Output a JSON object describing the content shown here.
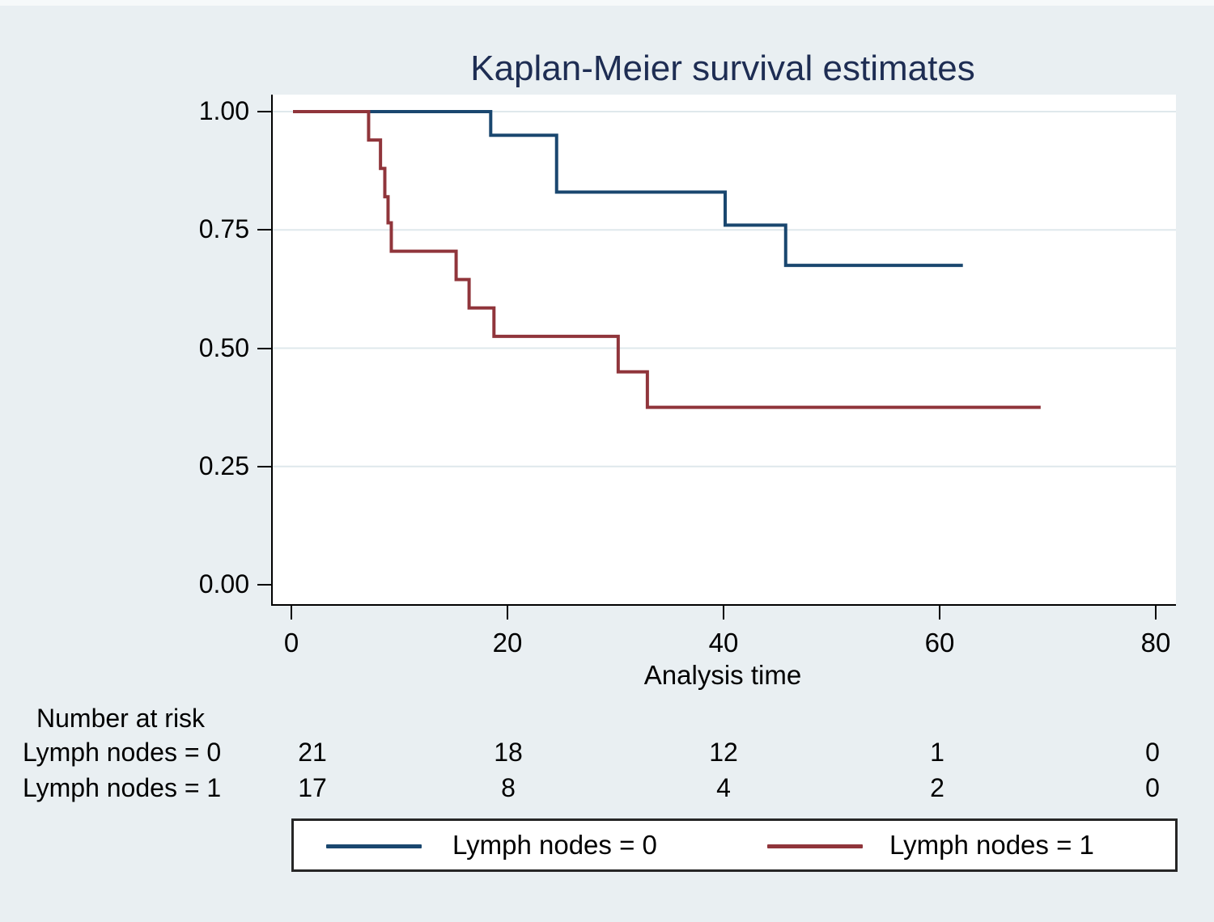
{
  "title": "Kaplan-Meier survival estimates",
  "colors": {
    "background": "#e9eff2",
    "plot_background": "#ffffff",
    "gridline": "#dfe8ec",
    "axis": "#000000",
    "title_text": "#1e2d53",
    "group0_navy": "#1a476f",
    "group1_maroon": "#90353b"
  },
  "chart_data": {
    "type": "line",
    "variant": "kaplan-meier step survival curves",
    "title": "Kaplan-Meier survival estimates",
    "xlabel": "Analysis time",
    "ylabel": "",
    "xlim": [
      0,
      80
    ],
    "ylim": [
      0,
      1
    ],
    "grid": "horizontal gridlines at 1.00, 0.75, 0.50, 0.25",
    "legend_position": "bottom",
    "series": [
      {
        "name": "Lymph nodes = 0",
        "color": "#1a476f",
        "points": [
          [
            0,
            1.0
          ],
          [
            18.3,
            0.95
          ],
          [
            24.4,
            0.83
          ],
          [
            40,
            0.76
          ],
          [
            45.6,
            0.675
          ]
        ],
        "end_time": 62
      },
      {
        "name": "Lymph nodes = 1",
        "color": "#90353b",
        "points": [
          [
            0,
            1.0
          ],
          [
            7,
            0.94
          ],
          [
            8.1,
            0.88
          ],
          [
            8.5,
            0.82
          ],
          [
            8.8,
            0.765
          ],
          [
            9.1,
            0.705
          ],
          [
            15.1,
            0.645
          ],
          [
            16.3,
            0.585
          ],
          [
            18.6,
            0.525
          ],
          [
            30.1,
            0.45
          ],
          [
            32.8,
            0.375
          ]
        ],
        "end_time": 69.2
      }
    ]
  },
  "x_axis": {
    "label": "Analysis time",
    "ticks": [
      {
        "v": 0,
        "label": "0"
      },
      {
        "v": 20,
        "label": "20"
      },
      {
        "v": 40,
        "label": "40"
      },
      {
        "v": 60,
        "label": "60"
      },
      {
        "v": 80,
        "label": "80"
      }
    ]
  },
  "y_axis": {
    "ticks": [
      {
        "v": 1.0,
        "label": "1.00"
      },
      {
        "v": 0.75,
        "label": "0.75"
      },
      {
        "v": 0.5,
        "label": "0.50"
      },
      {
        "v": 0.25,
        "label": "0.25"
      },
      {
        "v": 0.0,
        "label": "0.00"
      }
    ],
    "gridlines": [
      1.0,
      0.75,
      0.5,
      0.25
    ]
  },
  "risk_table": {
    "header": "Number at risk",
    "time_points": [
      0,
      20,
      40,
      60,
      80
    ],
    "rows": [
      {
        "label": "Lymph nodes = 0",
        "counts": [
          "21",
          "18",
          "12",
          "1",
          "0"
        ]
      },
      {
        "label": "Lymph nodes = 1",
        "counts": [
          "17",
          "8",
          "4",
          "2",
          "0"
        ]
      }
    ]
  },
  "legend": {
    "entries": [
      {
        "label": "Lymph nodes = 0",
        "color": "#1a476f"
      },
      {
        "label": "Lymph nodes = 1",
        "color": "#90353b"
      }
    ]
  }
}
